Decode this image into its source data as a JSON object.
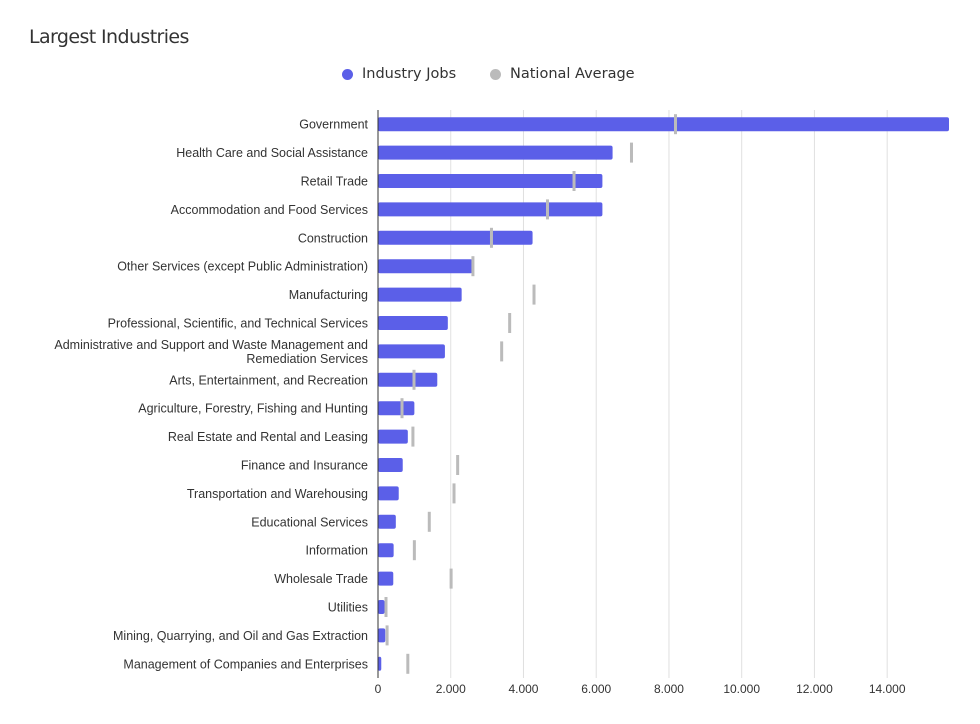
{
  "title": "Largest Industries",
  "legend": [
    {
      "label": "Industry Jobs",
      "color": "#5b5fe8"
    },
    {
      "label": "National Average",
      "color": "#bbbbbb"
    }
  ],
  "chart_data": {
    "type": "bar",
    "orientation": "horizontal",
    "title": "Largest Industries",
    "xlabel": "",
    "ylabel": "",
    "xlim": [
      0,
      15700
    ],
    "x_ticks": [
      0,
      2000,
      4000,
      6000,
      8000,
      10000,
      12000,
      14000
    ],
    "x_tick_labels": [
      "0",
      "2.000",
      "4.000",
      "6.000",
      "8.000",
      "10.000",
      "12.000",
      "14.000"
    ],
    "grid": "vertical",
    "legend_position": "top-center",
    "categories": [
      "Government",
      "Health Care and Social Assistance",
      "Retail Trade",
      "Accommodation and Food Services",
      "Construction",
      "Other Services (except Public Administration)",
      "Manufacturing",
      "Professional, Scientific, and Technical Services",
      "Administrative and Support and Waste Management and Remediation Services",
      "Arts, Entertainment, and Recreation",
      "Agriculture, Forestry, Fishing and Hunting",
      "Real Estate and Rental and Leasing",
      "Finance and Insurance",
      "Transportation and Warehousing",
      "Educational Services",
      "Information",
      "Wholesale Trade",
      "Utilities",
      "Mining, Quarrying, and Oil and Gas Extraction",
      "Management of Companies and Enterprises"
    ],
    "category_lines": [
      [
        "Government"
      ],
      [
        "Health Care and Social Assistance"
      ],
      [
        "Retail Trade"
      ],
      [
        "Accommodation and Food Services"
      ],
      [
        "Construction"
      ],
      [
        "Other Services (except Public Administration)"
      ],
      [
        "Manufacturing"
      ],
      [
        "Professional, Scientific, and Technical Services"
      ],
      [
        "Administrative and Support and Waste Management and",
        "Remediation Services"
      ],
      [
        "Arts, Entertainment, and Recreation"
      ],
      [
        "Agriculture, Forestry, Fishing and Hunting"
      ],
      [
        "Real Estate and Rental and Leasing"
      ],
      [
        "Finance and Insurance"
      ],
      [
        "Transportation and Warehousing"
      ],
      [
        "Educational Services"
      ],
      [
        "Information"
      ],
      [
        "Wholesale Trade"
      ],
      [
        "Utilities"
      ],
      [
        "Mining, Quarrying, and Oil and Gas Extraction"
      ],
      [
        "Management of Companies and Enterprises"
      ]
    ],
    "series": [
      {
        "name": "Industry Jobs",
        "color": "#5b5fe8",
        "values": [
          15700,
          6450,
          6170,
          6170,
          4250,
          2600,
          2300,
          1920,
          1840,
          1630,
          1000,
          820,
          680,
          570,
          490,
          430,
          420,
          180,
          200,
          90
        ]
      },
      {
        "name": "National Average",
        "color": "#bbbbbb",
        "marker": "tick",
        "values": [
          8180,
          6970,
          5390,
          4660,
          3120,
          2610,
          4290,
          3620,
          3400,
          990,
          660,
          960,
          2190,
          2090,
          1410,
          1000,
          2010,
          220,
          250,
          820
        ]
      }
    ]
  }
}
